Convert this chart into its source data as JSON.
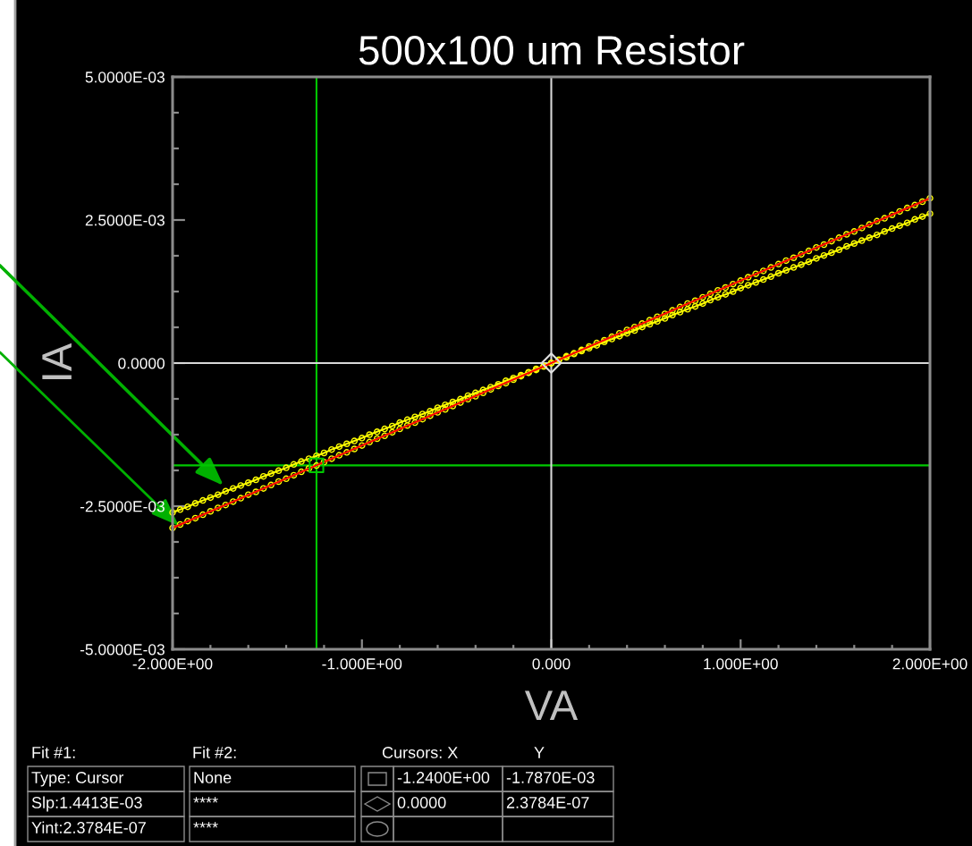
{
  "chart_data": {
    "type": "line",
    "title": "500x100 um Resistor",
    "xlabel": "VA",
    "ylabel": "IA",
    "marker": "circle",
    "xlim": [
      -2,
      2
    ],
    "ylim": [
      -0.005,
      0.005
    ],
    "xticks": [
      {
        "value": -2,
        "label": "-2.000E+00"
      },
      {
        "value": -1.8,
        "label": null
      },
      {
        "value": -1.6,
        "label": null
      },
      {
        "value": -1.4,
        "label": null
      },
      {
        "value": -1.2,
        "label": null
      },
      {
        "value": -1,
        "label": "-1.000E+00"
      },
      {
        "value": -0.8,
        "label": null
      },
      {
        "value": -0.6,
        "label": null
      },
      {
        "value": -0.4,
        "label": null
      },
      {
        "value": -0.2,
        "label": null
      },
      {
        "value": 0,
        "label": "0.000"
      },
      {
        "value": 0.2,
        "label": null
      },
      {
        "value": 0.4,
        "label": null
      },
      {
        "value": 0.6,
        "label": null
      },
      {
        "value": 0.8,
        "label": null
      },
      {
        "value": 1,
        "label": "1.000E+00"
      },
      {
        "value": 1.2,
        "label": null
      },
      {
        "value": 1.4,
        "label": null
      },
      {
        "value": 1.6,
        "label": null
      },
      {
        "value": 1.8,
        "label": null
      },
      {
        "value": 2,
        "label": "2.000E+00"
      }
    ],
    "yticks": [
      {
        "value": 0.005,
        "label": "5.0000E-03"
      },
      {
        "value": 0.004375,
        "label": null
      },
      {
        "value": 0.00375,
        "label": null
      },
      {
        "value": 0.003125,
        "label": null
      },
      {
        "value": 0.0025,
        "label": "2.5000E-03"
      },
      {
        "value": 0.001875,
        "label": null
      },
      {
        "value": 0.00125,
        "label": null
      },
      {
        "value": 0.000625,
        "label": null
      },
      {
        "value": 0,
        "label": "0.0000"
      },
      {
        "value": -0.000625,
        "label": null
      },
      {
        "value": -0.00125,
        "label": null
      },
      {
        "value": -0.001875,
        "label": null
      },
      {
        "value": -0.0025,
        "label": "-2.5000E-03"
      },
      {
        "value": -0.003125,
        "label": null
      },
      {
        "value": -0.00375,
        "label": null
      },
      {
        "value": -0.004375,
        "label": null
      },
      {
        "value": -0.005,
        "label": "-5.0000E-03"
      }
    ],
    "x": [
      -2,
      -1.96,
      -1.92,
      -1.88,
      -1.84,
      -1.8,
      -1.76,
      -1.72,
      -1.68,
      -1.64,
      -1.6,
      -1.56,
      -1.52,
      -1.48,
      -1.44,
      -1.4,
      -1.36,
      -1.32,
      -1.28,
      -1.24,
      -1.2,
      -1.16,
      -1.12,
      -1.08,
      -1.04,
      -1,
      -0.96,
      -0.92,
      -0.88,
      -0.84,
      -0.8,
      -0.76,
      -0.72,
      -0.68,
      -0.64,
      -0.6,
      -0.56,
      -0.52,
      -0.48,
      -0.44,
      -0.4,
      -0.36,
      -0.32,
      -0.28,
      -0.24,
      -0.2,
      -0.16,
      -0.12,
      -0.08,
      -0.04,
      0,
      0.04,
      0.08,
      0.12,
      0.16,
      0.2,
      0.24,
      0.28,
      0.32,
      0.36,
      0.4,
      0.44,
      0.48,
      0.52,
      0.56,
      0.6,
      0.64,
      0.68,
      0.72,
      0.76,
      0.8,
      0.84,
      0.88,
      0.92,
      0.96,
      1,
      1.04,
      1.08,
      1.12,
      1.16,
      1.2,
      1.24,
      1.28,
      1.32,
      1.36,
      1.4,
      1.44,
      1.48,
      1.52,
      1.56,
      1.6,
      1.64,
      1.68,
      1.72,
      1.76,
      1.8,
      1.84,
      1.88,
      1.92,
      1.96,
      2
    ],
    "series": [
      {
        "color": "#ffff00",
        "values": [
          -0.00261,
          -0.00256,
          -0.00251,
          -0.00245,
          -0.0024,
          -0.00235,
          -0.0023,
          -0.00224,
          -0.00219,
          -0.00214,
          -0.00209,
          -0.00204,
          -0.00198,
          -0.00193,
          -0.00188,
          -0.00183,
          -0.00177,
          -0.00172,
          -0.00167,
          -0.00162,
          -0.00157,
          -0.00151,
          -0.00146,
          -0.00141,
          -0.00136,
          -0.00131,
          -0.00125,
          -0.0012,
          -0.00115,
          -0.0011,
          -0.00104,
          -0.00099,
          -0.00094,
          -0.00089,
          -0.00084,
          -0.00078,
          -0.00073,
          -0.00068,
          -0.00063,
          -0.00057,
          -0.00052,
          -0.00047,
          -0.00042,
          -0.00037,
          -0.00031,
          -0.00026,
          -0.00021,
          -0.00016,
          -0.0001,
          -5e-05,
          0,
          5e-05,
          0.0001,
          0.00016,
          0.00021,
          0.00026,
          0.00031,
          0.00037,
          0.00042,
          0.00047,
          0.00052,
          0.00057,
          0.00063,
          0.00068,
          0.00073,
          0.00078,
          0.00084,
          0.00089,
          0.00094,
          0.00099,
          0.00104,
          0.0011,
          0.00115,
          0.0012,
          0.00125,
          0.00131,
          0.00136,
          0.00141,
          0.00146,
          0.00151,
          0.00157,
          0.00162,
          0.00167,
          0.00172,
          0.00177,
          0.00183,
          0.00188,
          0.00193,
          0.00198,
          0.00204,
          0.00209,
          0.00214,
          0.00219,
          0.00224,
          0.0023,
          0.00235,
          0.0024,
          0.00245,
          0.00251,
          0.00256,
          0.00261
        ]
      },
      {
        "color": "#ffff00",
        "values": [
          -0.00288,
          -0.00282,
          -0.00276,
          -0.00271,
          -0.00265,
          -0.00259,
          -0.00253,
          -0.00248,
          -0.00242,
          -0.00236,
          -0.0023,
          -0.00225,
          -0.00219,
          -0.00213,
          -0.00207,
          -0.00202,
          -0.00196,
          -0.0019,
          -0.00184,
          -0.00179,
          -0.00173,
          -0.00167,
          -0.00161,
          -0.00156,
          -0.0015,
          -0.00144,
          -0.00138,
          -0.00132,
          -0.00127,
          -0.00121,
          -0.00115,
          -0.00109,
          -0.00104,
          -0.00098,
          -0.00092,
          -0.00086,
          -0.00081,
          -0.00075,
          -0.00069,
          -0.00063,
          -0.00058,
          -0.00052,
          -0.00046,
          -0.0004,
          -0.00035,
          -0.00029,
          -0.00023,
          -0.00017,
          -0.00012,
          -6e-05,
          0,
          6e-05,
          0.00012,
          0.00017,
          0.00023,
          0.00029,
          0.00035,
          0.0004,
          0.00046,
          0.00052,
          0.00058,
          0.00063,
          0.00069,
          0.00075,
          0.00081,
          0.00086,
          0.00092,
          0.00098,
          0.00104,
          0.00109,
          0.00115,
          0.00121,
          0.00127,
          0.00132,
          0.00138,
          0.00144,
          0.0015,
          0.00156,
          0.00161,
          0.00167,
          0.00173,
          0.00179,
          0.00184,
          0.0019,
          0.00196,
          0.00202,
          0.00207,
          0.00213,
          0.00219,
          0.00225,
          0.0023,
          0.00236,
          0.00242,
          0.00248,
          0.00253,
          0.00259,
          0.00265,
          0.00271,
          0.00276,
          0.00282,
          0.00288
        ]
      },
      {
        "type": "line",
        "marker": "none",
        "color": "#ff0000",
        "x": [
          -2,
          2
        ],
        "values": [
          -0.00288,
          0.00288
        ]
      },
      {
        "type": "scatter",
        "marker": "square",
        "color": "#00c800",
        "x": [
          -1.24
        ],
        "values": [
          -0.001787
        ]
      },
      {
        "type": "scatter",
        "marker": "diamond",
        "color": "#e0e0e0",
        "x": [
          0
        ],
        "values": [
          2.3784e-07
        ]
      }
    ],
    "ref_lines": [
      {
        "axis": "x",
        "value": -1.24,
        "color": "#00c800"
      },
      {
        "axis": "y",
        "value": -0.001787,
        "color": "#00c800"
      },
      {
        "axis": "x",
        "value": 0,
        "color": "#d8d8d8"
      },
      {
        "axis": "y",
        "value": 2.3784e-07,
        "color": "#d8d8d8"
      }
    ],
    "annotations": [
      "Fit #1:",
      "Fit #2:",
      "Cursors: X",
      "Y",
      "Type: Cursor",
      "None",
      "-1.2400E+00",
      "-1.7870E-03",
      "Slp:1.4413E-03",
      "****",
      "0.0000",
      "2.3784E-07",
      "Yint:2.3784E-07",
      "****"
    ]
  }
}
